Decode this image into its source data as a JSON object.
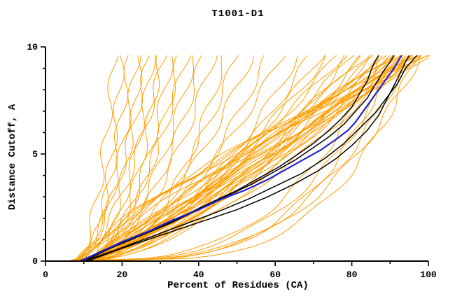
{
  "chart_data": {
    "type": "line",
    "title": "T1001-D1",
    "xlabel": "Percent of Residues (CA)",
    "ylabel": "Distance Cutoff, A",
    "xlim": [
      0,
      100
    ],
    "ylim": [
      0,
      10
    ],
    "x_major_ticks": [
      0,
      20,
      40,
      60,
      80,
      100
    ],
    "x_minor_ticks": [
      10,
      30,
      50,
      70,
      90
    ],
    "y_major_ticks": [
      0,
      5,
      10
    ],
    "y_minor_ticks": [
      1,
      2,
      3,
      4,
      6,
      7,
      8,
      9
    ],
    "grid": false,
    "legend": "none",
    "y_top": 9.6,
    "colors": {
      "ensemble": "#FF9D00",
      "highlight_black": "#000000",
      "highlight_blue": "#2222CC",
      "axis": "#000000"
    },
    "ensemble_wiggle": {
      "amp": 1.0,
      "freq": 2.1
    },
    "ensemble_curves": [
      [
        6,
        18,
        0.4
      ],
      [
        7,
        20,
        0.35
      ],
      [
        8,
        22,
        0.5
      ],
      [
        6,
        24,
        0.42
      ],
      [
        9,
        25,
        0.38
      ],
      [
        7,
        27,
        0.55
      ],
      [
        10,
        28,
        0.45
      ],
      [
        8,
        30,
        0.36
      ],
      [
        6,
        31,
        0.52
      ],
      [
        9,
        33,
        0.44
      ],
      [
        7,
        35,
        0.4
      ],
      [
        10,
        37,
        0.58
      ],
      [
        8,
        39,
        0.47
      ],
      [
        6,
        41,
        0.42
      ],
      [
        9,
        44,
        0.5
      ],
      [
        11,
        47,
        0.45
      ],
      [
        7,
        50,
        0.48
      ],
      [
        9,
        54,
        0.55
      ],
      [
        8,
        58,
        0.5
      ],
      [
        10,
        62,
        0.6
      ],
      [
        7,
        66,
        0.52
      ],
      [
        11,
        69,
        0.58
      ],
      [
        8,
        72,
        0.6
      ],
      [
        10,
        74,
        0.7
      ],
      [
        7,
        76,
        0.62
      ],
      [
        9,
        78,
        0.75
      ],
      [
        11,
        79,
        0.58
      ],
      [
        8,
        80,
        0.68
      ],
      [
        10,
        82,
        0.72
      ],
      [
        7,
        83,
        0.6
      ],
      [
        9,
        84,
        0.78
      ],
      [
        12,
        85,
        0.65
      ],
      [
        8,
        86,
        0.7
      ],
      [
        10,
        87,
        0.62
      ],
      [
        7,
        88,
        0.74
      ],
      [
        9,
        89,
        0.68
      ],
      [
        11,
        90,
        0.6
      ],
      [
        8,
        91,
        0.72
      ],
      [
        10,
        92,
        0.66
      ],
      [
        7,
        93,
        0.76
      ],
      [
        9,
        94,
        0.7
      ],
      [
        12,
        95,
        0.64
      ],
      [
        8,
        96,
        0.74
      ],
      [
        10,
        96,
        0.8
      ],
      [
        9,
        90,
        0.95
      ],
      [
        11,
        92,
        1.05
      ],
      [
        8,
        93,
        1.15
      ],
      [
        10,
        95,
        0.9
      ],
      [
        12,
        96,
        1.1
      ],
      [
        9,
        97,
        1.25
      ],
      [
        11,
        98,
        1.0
      ],
      [
        8,
        98,
        1.2
      ],
      [
        10,
        99,
        1.35
      ],
      [
        13,
        99,
        0.95
      ],
      [
        9,
        100,
        1.15
      ],
      [
        12,
        100,
        1.05
      ],
      [
        6,
        88,
        0.32
      ],
      [
        8,
        91,
        0.28
      ],
      [
        10,
        93,
        0.35
      ],
      [
        7,
        95,
        0.3
      ],
      [
        9,
        97,
        0.26
      ],
      [
        12,
        98,
        0.33
      ]
    ],
    "highlight_curves": [
      {
        "name": "model-black-1",
        "color": "#000000",
        "width": 1.5,
        "points": [
          [
            9,
            0
          ],
          [
            15,
            0.5
          ],
          [
            22,
            1.0
          ],
          [
            30,
            1.6
          ],
          [
            37,
            2.2
          ],
          [
            44,
            2.8
          ],
          [
            50,
            3.3
          ],
          [
            56,
            3.9
          ],
          [
            61,
            4.4
          ],
          [
            66,
            5.0
          ],
          [
            70,
            5.5
          ],
          [
            74,
            6.1
          ],
          [
            77,
            6.6
          ],
          [
            80,
            7.2
          ],
          [
            82,
            7.8
          ],
          [
            84,
            8.4
          ],
          [
            85,
            8.9
          ],
          [
            86,
            9.3
          ],
          [
            87,
            9.6
          ]
        ]
      },
      {
        "name": "model-black-2",
        "color": "#000000",
        "width": 1.5,
        "points": [
          [
            10,
            0
          ],
          [
            17,
            0.6
          ],
          [
            25,
            1.2
          ],
          [
            33,
            1.8
          ],
          [
            41,
            2.5
          ],
          [
            48,
            3.1
          ],
          [
            54,
            3.6
          ],
          [
            60,
            4.2
          ],
          [
            65,
            4.7
          ],
          [
            70,
            5.3
          ],
          [
            74,
            5.8
          ],
          [
            78,
            6.4
          ],
          [
            81,
            7.0
          ],
          [
            84,
            7.6
          ],
          [
            86,
            8.2
          ],
          [
            88,
            8.8
          ],
          [
            90,
            9.3
          ],
          [
            91,
            9.6
          ]
        ]
      },
      {
        "name": "model-black-3",
        "color": "#000000",
        "width": 1.5,
        "points": [
          [
            11,
            0
          ],
          [
            20,
            0.6
          ],
          [
            30,
            1.2
          ],
          [
            40,
            1.8
          ],
          [
            50,
            2.4
          ],
          [
            58,
            3.0
          ],
          [
            65,
            3.6
          ],
          [
            71,
            4.2
          ],
          [
            76,
            4.8
          ],
          [
            80,
            5.4
          ],
          [
            84,
            6.1
          ],
          [
            87,
            6.8
          ],
          [
            89,
            7.5
          ],
          [
            91,
            8.2
          ],
          [
            93,
            8.9
          ],
          [
            94,
            9.3
          ],
          [
            95,
            9.6
          ]
        ]
      },
      {
        "name": "model-black-4",
        "color": "#000000",
        "width": 1.5,
        "points": [
          [
            10,
            0
          ],
          [
            18,
            0.5
          ],
          [
            27,
            1.1
          ],
          [
            36,
            1.7
          ],
          [
            45,
            2.3
          ],
          [
            53,
            2.9
          ],
          [
            60,
            3.5
          ],
          [
            67,
            4.1
          ],
          [
            73,
            4.8
          ],
          [
            78,
            5.5
          ],
          [
            82,
            6.2
          ],
          [
            86,
            6.9
          ],
          [
            89,
            7.6
          ],
          [
            92,
            8.3
          ],
          [
            94,
            9.0
          ],
          [
            96,
            9.4
          ],
          [
            97,
            9.6
          ]
        ]
      },
      {
        "name": "model-blue",
        "color": "#2222CC",
        "width": 2.2,
        "points": [
          [
            9,
            0
          ],
          [
            14,
            0.4
          ],
          [
            20,
            0.9
          ],
          [
            27,
            1.4
          ],
          [
            33,
            1.9
          ],
          [
            40,
            2.4
          ],
          [
            46,
            2.9
          ],
          [
            52,
            3.3
          ],
          [
            58,
            3.8
          ],
          [
            63,
            4.3
          ],
          [
            68,
            4.8
          ],
          [
            72,
            5.2
          ],
          [
            76,
            5.7
          ],
          [
            79,
            6.1
          ],
          [
            81,
            6.5
          ],
          [
            83,
            7.0
          ],
          [
            85,
            7.5
          ],
          [
            87,
            8.0
          ],
          [
            89,
            8.5
          ],
          [
            91,
            9.0
          ],
          [
            92,
            9.3
          ],
          [
            93,
            9.6
          ]
        ]
      }
    ]
  }
}
